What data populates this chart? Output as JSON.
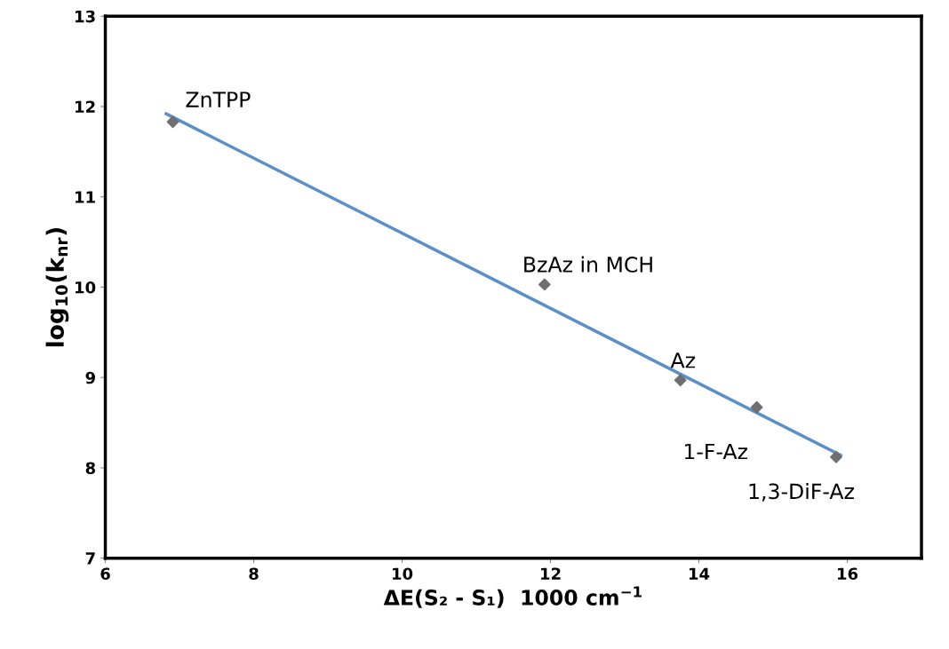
{
  "chart_data": {
    "type": "scatter",
    "xlabel": "ΔE(S₂ - S₁)  1000 cm$^{−1}$",
    "ylabel": "log$_{10}$(k$_{nr}$)",
    "x": [
      6.91,
      11.92,
      13.75,
      14.78,
      15.85
    ],
    "series": [
      {
        "color": "#6f6f6f",
        "marker": "diamond",
        "values": [
          11.83,
          10.03,
          8.97,
          8.67,
          8.12
        ]
      },
      {
        "type": "line",
        "color": "#5b8fc9",
        "marker": "none",
        "line_style": "solid",
        "x": [
          6.82,
          15.91
        ],
        "values": [
          11.92,
          8.14
        ]
      }
    ],
    "annotations": [
      {
        "text": "ZnTPP",
        "x": 6.91,
        "y": 11.83
      },
      {
        "text": "BzAz in MCH",
        "x": 11.92,
        "y": 10.03
      },
      {
        "text": "Az",
        "x": 13.75,
        "y": 8.97
      },
      {
        "text": "1-F-Az",
        "x": 14.78,
        "y": 8.67
      },
      {
        "text": "1,3-DiF-Az",
        "x": 15.85,
        "y": 8.12
      }
    ],
    "xlim": [
      6,
      17
    ],
    "ylim": [
      7,
      13
    ],
    "xticks": [
      6,
      8,
      10,
      12,
      14,
      16
    ],
    "yticks": [
      7,
      8,
      9,
      10,
      11,
      12,
      13
    ],
    "grid": false,
    "legend": false
  }
}
